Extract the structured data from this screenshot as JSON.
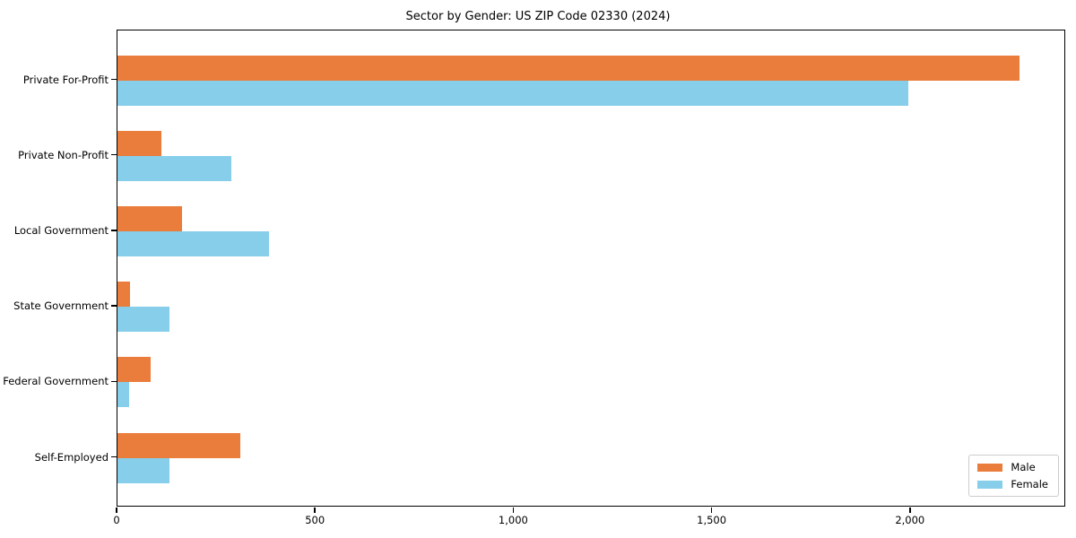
{
  "chart_data": {
    "type": "bar",
    "orientation": "horizontal",
    "title": "Sector by Gender: US ZIP Code 02330 (2024)",
    "categories": [
      "Private For-Profit",
      "Private Non-Profit",
      "Local Government",
      "State Government",
      "Federal Government",
      "Self-Employed"
    ],
    "series": [
      {
        "name": "Male",
        "color": "#EA7C3C",
        "values": [
          2273,
          111,
          163,
          32,
          84,
          310
        ]
      },
      {
        "name": "Female",
        "color": "#87CEEB",
        "values": [
          1993,
          287,
          382,
          131,
          29,
          131
        ]
      }
    ],
    "xlabel": "",
    "ylabel": "",
    "xlim": [
      0,
      2387
    ],
    "x_ticks": [
      0,
      500,
      1000,
      1500,
      2000
    ],
    "x_tick_labels": [
      "0",
      "500",
      "1,000",
      "1,500",
      "2,000"
    ],
    "grid": false,
    "legend_position": "lower right"
  },
  "colors": {
    "axis": "#000000",
    "background": "#ffffff",
    "legend_border": "#cccccc"
  }
}
